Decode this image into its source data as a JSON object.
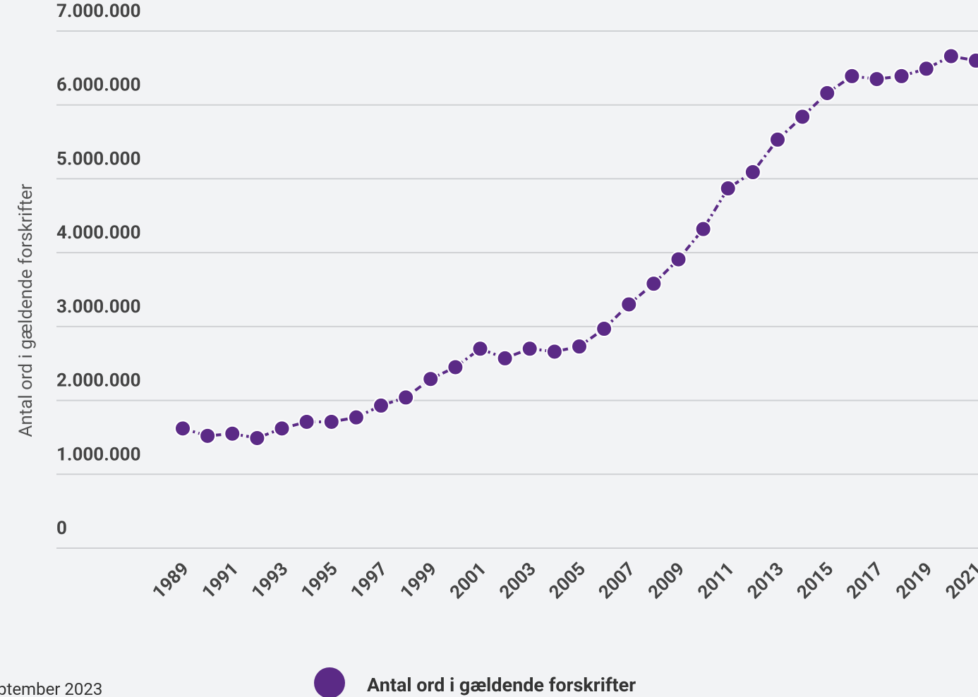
{
  "chart_data": {
    "type": "line",
    "ylabel": "Antal ord i gældende forskrifter",
    "note": "ptember 2023",
    "x": [
      1989,
      1990,
      1991,
      1992,
      1993,
      1994,
      1995,
      1996,
      1997,
      1998,
      1999,
      2000,
      2001,
      2002,
      2003,
      2004,
      2005,
      2006,
      2007,
      2008,
      2009,
      2010,
      2011,
      2012,
      2013,
      2014,
      2015,
      2016,
      2017,
      2018,
      2019,
      2020,
      2021
    ],
    "xlim": [
      1989,
      2021
    ],
    "xticks": [
      1989,
      1991,
      1993,
      1995,
      1997,
      1999,
      2001,
      2003,
      2005,
      2007,
      2009,
      2011,
      2013,
      2015,
      2017,
      2019,
      2021
    ],
    "ylim": [
      0,
      7000000
    ],
    "yticks": [
      0,
      {
        "value": 1000000,
        "label": "1.000.000"
      },
      {
        "value": 2000000,
        "label": "2.000.000"
      },
      {
        "value": 3000000,
        "label": "3.000.000"
      },
      {
        "value": 4000000,
        "label": "4.000.000"
      },
      {
        "value": 5000000,
        "label": "5.000.000"
      },
      {
        "value": 6000000,
        "label": "6.000.000"
      },
      {
        "value": 7000000,
        "label": "7.000.000"
      }
    ],
    "grid": true,
    "legend": "bottom",
    "series": [
      {
        "name": "Antal ord i gældende forskrifter",
        "color": "#5b2a86",
        "values": [
          1620000,
          1520000,
          1550000,
          1490000,
          1620000,
          1710000,
          1710000,
          1770000,
          1930000,
          2040000,
          2290000,
          2450000,
          2700000,
          2570000,
          2700000,
          2660000,
          2730000,
          2970000,
          3300000,
          3580000,
          3910000,
          4320000,
          4870000,
          5090000,
          5530000,
          5840000,
          6160000,
          6390000,
          6350000,
          6390000,
          6490000,
          6660000,
          6600000
        ]
      }
    ]
  }
}
